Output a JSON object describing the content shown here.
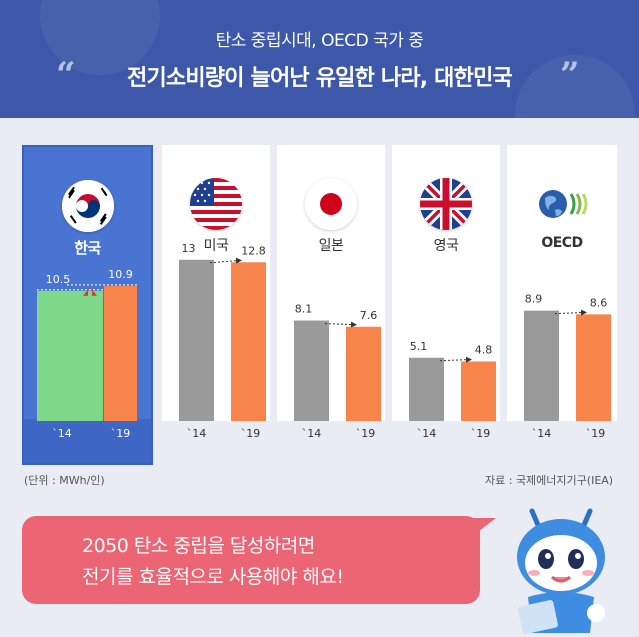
{
  "header": {
    "subtitle": "탄소 중립시대, OECD 국가 중",
    "title": "전기소비량이 늘어난 유일한 나라, 대한민국",
    "quote_open": "“",
    "quote_close": "”"
  },
  "chart_data": {
    "type": "bar",
    "categories": [
      "'14",
      "'19"
    ],
    "unit": "(단위 : MWh/인)",
    "source": "자료 : 국제에너지기구(IEA)",
    "panels": [
      {
        "country": "한국",
        "flag": "korea-flag-icon",
        "values": [
          10.5,
          10.9
        ],
        "labels": [
          "10.5",
          "10.9"
        ],
        "trend": "up"
      },
      {
        "country": "미국",
        "flag": "usa-flag-icon",
        "values": [
          13,
          12.8
        ],
        "labels": [
          "13",
          "12.8"
        ],
        "trend": "down"
      },
      {
        "country": "일본",
        "flag": "japan-flag-icon",
        "values": [
          8.1,
          7.6
        ],
        "labels": [
          "8.1",
          "7.6"
        ],
        "trend": "down"
      },
      {
        "country": "영국",
        "flag": "uk-flag-icon",
        "values": [
          5.1,
          4.8
        ],
        "labels": [
          "5.1",
          "4.8"
        ],
        "trend": "down"
      },
      {
        "country": "OECD",
        "flag": "oecd-logo-icon",
        "values": [
          8.9,
          8.6
        ],
        "labels": [
          "8.9",
          "8.6"
        ],
        "trend": "down"
      }
    ],
    "tick_labels": [
      "`14",
      "`19"
    ]
  },
  "bubble": {
    "line1": "2050 탄소 중립을 달성하려면",
    "line2": "전기를 효율적으로 사용해야 해요!"
  },
  "colors": {
    "header": "#3d58a8",
    "korea_panel": "#4a74d2",
    "bar_2014_korea": "#7ed88a",
    "bar_2019": "#f7844a",
    "bar_2014": "#9a9a9a",
    "bubble": "#eb6574"
  }
}
